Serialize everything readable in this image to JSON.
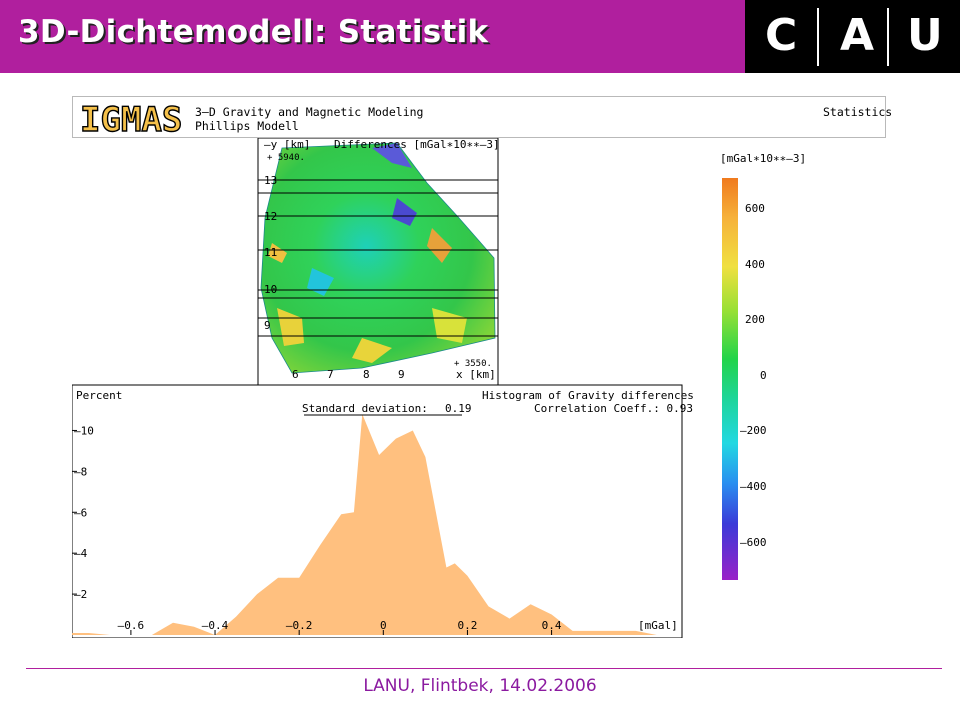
{
  "slide": {
    "title": "3D-Dichtemodell: Statistik",
    "footer": "LANU, Flintbek, 14.02.2006"
  },
  "logo": {
    "letters": [
      "C",
      "A",
      "U"
    ]
  },
  "igmas": {
    "logo_text": "IGMAS",
    "line1": "3—D Gravity and Magnetic Modeling",
    "line2": "Phillips Modell",
    "mode": "Statistics"
  },
  "map": {
    "y_axis_label": "—y [km]",
    "title": "Differences [mGal∗10∗∗—3]",
    "corner_top": "+ 5940.",
    "corner_bottom": "+ 3550.",
    "x_axis_label": "x [km]",
    "y_ticks": [
      "13",
      "12",
      "11",
      "10",
      "9"
    ],
    "x_ticks": [
      "6",
      "7",
      "8",
      "9"
    ]
  },
  "colorbar": {
    "unit": "[mGal∗10∗∗—3]",
    "ticks": [
      "600",
      "400",
      "200",
      "0",
      "—200",
      "—400",
      "—600"
    ]
  },
  "histogram": {
    "y_label": "Percent",
    "title": "Histogram of Gravity differences",
    "correlation": "Correlation Coeff.: 0.93",
    "std_label": "Standard deviation:",
    "std_value": "0.19",
    "y_ticks": [
      "—10",
      "—8",
      "—6",
      "—4",
      "—2"
    ],
    "x_ticks": [
      "—0.6",
      "—0.4",
      "—0.2",
      "0",
      "0.2",
      "0.4"
    ],
    "x_unit": "[mGal]",
    "fill_color": "#ffc07f"
  },
  "chart_data": {
    "type": "area",
    "title": "Histogram of Gravity differences",
    "xlabel": "[mGal]",
    "ylabel": "Percent",
    "xlim": [
      -0.74,
      0.71
    ],
    "ylim": [
      0,
      11
    ],
    "x": [
      -0.74,
      -0.7,
      -0.65,
      -0.6,
      -0.55,
      -0.5,
      -0.45,
      -0.4,
      -0.35,
      -0.3,
      -0.25,
      -0.2,
      -0.15,
      -0.1,
      -0.07,
      -0.05,
      -0.01,
      0.03,
      0.07,
      0.1,
      0.15,
      0.17,
      0.2,
      0.25,
      0.3,
      0.35,
      0.4,
      0.45,
      0.5,
      0.55,
      0.6,
      0.65,
      0.71
    ],
    "values": [
      0.1,
      0.1,
      0.0,
      0.0,
      0.0,
      0.6,
      0.4,
      0.0,
      0.9,
      2.0,
      2.8,
      2.8,
      4.4,
      5.9,
      6.0,
      10.8,
      8.8,
      9.6,
      10.0,
      8.7,
      3.3,
      3.5,
      2.9,
      1.4,
      0.8,
      1.5,
      1.0,
      0.2,
      0.2,
      0.2,
      0.2,
      0.0,
      0.0
    ]
  }
}
